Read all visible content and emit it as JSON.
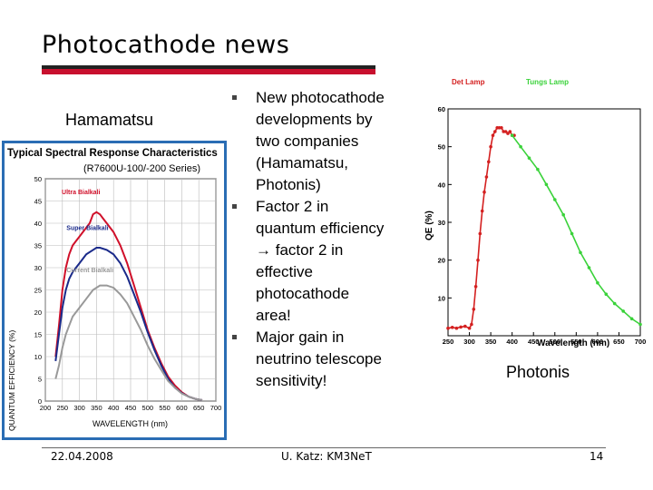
{
  "slide": {
    "title": "Photocathode news",
    "left_label": "Hamamatsu",
    "right_label": "Photonis",
    "bullets": [
      "New photocathode\ndevelopments by\ntwo companies\n(Hamamatsu,\nPhotonis)",
      "Factor 2 in\nquantum efficiency\n→ factor 2 in\neffective\nphotocathode\narea!",
      "Major gain in\nneutrino telescope\nsensitivity!"
    ],
    "footer": {
      "date": "22.04.2008",
      "author": "U. Katz: KM3NeT",
      "page": "14"
    }
  },
  "colors": {
    "accent_red": "#c8102e",
    "panel_blue": "#2a6db4",
    "ultra": "#d0102a",
    "super": "#1a2a8a",
    "current": "#999999",
    "photonis_red": "#d42020",
    "photonis_green": "#3ad23a"
  },
  "chart_data": [
    {
      "type": "line",
      "title": "Typical Spectral Response Characteristics",
      "subtitle": "(R7600U-100/-200 Series)",
      "xlabel": "WAVELENGTH (nm)",
      "ylabel": "QUANTUM EFFICIENCY (%)",
      "xlim": [
        200,
        700
      ],
      "ylim": [
        0,
        50
      ],
      "xticks": [
        200,
        250,
        300,
        350,
        400,
        450,
        500,
        550,
        600,
        650,
        700
      ],
      "yticks": [
        0,
        5,
        10,
        15,
        20,
        25,
        30,
        35,
        40,
        45,
        50
      ],
      "grid": true,
      "series": [
        {
          "name": "Ultra Bialkali",
          "color": "#d0102a",
          "x": [
            230,
            240,
            250,
            260,
            270,
            280,
            290,
            300,
            310,
            320,
            330,
            340,
            350,
            360,
            370,
            380,
            390,
            400,
            420,
            440,
            460,
            480,
            500,
            520,
            540,
            560,
            580,
            600,
            620,
            640,
            660
          ],
          "y": [
            10,
            17,
            25,
            30,
            33,
            35,
            36,
            37,
            38,
            39,
            40,
            42,
            42.5,
            42,
            41,
            40,
            39,
            38,
            35,
            31,
            26,
            21,
            16,
            12,
            8.5,
            5.5,
            3.5,
            2,
            1,
            0.5,
            0.2
          ]
        },
        {
          "name": "Super Bialkali",
          "color": "#1a2a8a",
          "x": [
            230,
            240,
            250,
            260,
            270,
            280,
            290,
            300,
            320,
            340,
            350,
            360,
            380,
            400,
            420,
            440,
            460,
            480,
            500,
            520,
            540,
            560,
            580,
            600,
            620,
            640,
            660
          ],
          "y": [
            9,
            15,
            21,
            25,
            27.5,
            29,
            30,
            31,
            33,
            34,
            34.5,
            34.5,
            34,
            33,
            31,
            28,
            24,
            20,
            15.5,
            11.5,
            8,
            5,
            3,
            1.8,
            1,
            0.5,
            0.2
          ]
        },
        {
          "name": "Current Bialkali",
          "color": "#999999",
          "x": [
            230,
            240,
            250,
            260,
            270,
            280,
            300,
            320,
            340,
            360,
            380,
            400,
            420,
            440,
            460,
            480,
            500,
            520,
            540,
            560,
            580,
            600,
            620,
            640,
            660
          ],
          "y": [
            5,
            8,
            12,
            15,
            17,
            19,
            21,
            23,
            25,
            26,
            26,
            25.5,
            24,
            22,
            19,
            16,
            12.5,
            9.5,
            7,
            4.5,
            3,
            1.7,
            1,
            0.5,
            0.2
          ]
        }
      ]
    },
    {
      "type": "line",
      "xlabel": "Wavelength (nm)",
      "ylabel": "QE (%)",
      "xlim": [
        250,
        700
      ],
      "ylim": [
        0,
        60
      ],
      "xticks": [
        250,
        300,
        350,
        400,
        450,
        500,
        550,
        600,
        650,
        700
      ],
      "yticks": [
        10,
        20,
        30,
        40,
        50,
        60
      ],
      "legend": [
        "Det Lamp",
        "Tungs Lamp"
      ],
      "series": [
        {
          "name": "Det Lamp",
          "color": "#d42020",
          "x": [
            250,
            260,
            270,
            280,
            290,
            300,
            305,
            310,
            315,
            320,
            325,
            330,
            335,
            340,
            345,
            350,
            355,
            360,
            365,
            370,
            375,
            380,
            385,
            390,
            395,
            400,
            405
          ],
          "y": [
            2,
            2.2,
            2,
            2.3,
            2.5,
            2,
            3,
            7,
            13,
            20,
            27,
            33,
            38,
            42,
            46,
            50,
            53,
            54,
            55,
            55,
            55,
            54,
            54,
            53.5,
            54,
            53,
            53
          ]
        },
        {
          "name": "Tungs Lamp",
          "color": "#3ad23a",
          "x": [
            400,
            420,
            440,
            460,
            480,
            500,
            520,
            540,
            560,
            580,
            600,
            620,
            640,
            660,
            680,
            700
          ],
          "y": [
            53,
            50,
            47,
            44,
            40,
            36,
            32,
            27,
            22,
            18,
            14,
            11,
            8.5,
            6.5,
            4.5,
            3
          ]
        }
      ]
    }
  ]
}
